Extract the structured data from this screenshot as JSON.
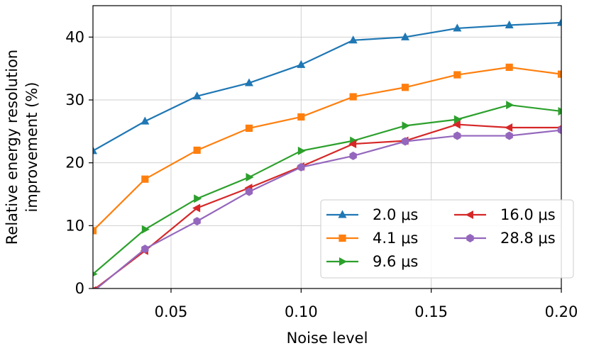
{
  "chart_data": {
    "type": "line",
    "x_label": "Noise level",
    "y_label": [
      "Relative energy resolution",
      "improvement (%)"
    ],
    "x": [
      0.02,
      0.04,
      0.06,
      0.08,
      0.1,
      0.12,
      0.14,
      0.16,
      0.18,
      0.2
    ],
    "xlim": [
      0.02,
      0.2
    ],
    "xticks": [
      0.05,
      {
        "value": 0.1,
        "label": "0.10"
      },
      0.15,
      {
        "value": 0.2,
        "label": "0.20"
      }
    ],
    "ylim": [
      0,
      45
    ],
    "yticks": [
      0,
      10,
      20,
      30,
      40
    ],
    "grid": true,
    "legend": "lower right",
    "series": [
      {
        "name": "2.0 μs",
        "color": "#1f77b4",
        "marker": "triangle-up",
        "values": [
          21.9,
          26.6,
          30.6,
          32.7,
          35.6,
          39.5,
          40.0,
          41.4,
          41.9,
          42.3
        ]
      },
      {
        "name": "4.1 μs",
        "color": "#ff7f0e",
        "marker": "square",
        "values": [
          9.2,
          17.4,
          22.0,
          25.5,
          27.3,
          30.5,
          32.0,
          34.0,
          35.2,
          34.1
        ]
      },
      {
        "name": "9.6 μs",
        "color": "#2ca02c",
        "marker": "triangle-right",
        "values": [
          2.3,
          9.4,
          14.3,
          17.7,
          21.9,
          23.5,
          25.9,
          26.9,
          29.2,
          28.2
        ]
      },
      {
        "name": "16.0 μs",
        "color": "#d62728",
        "marker": "triangle-left",
        "values": [
          -0.3,
          6.0,
          12.8,
          16.0,
          19.4,
          23.0,
          23.5,
          26.1,
          25.6,
          25.6
        ]
      },
      {
        "name": "28.8 μs",
        "color": "#9467bd",
        "marker": "hexagon",
        "values": [
          -0.5,
          6.3,
          10.7,
          15.4,
          19.3,
          21.1,
          23.4,
          24.3,
          24.3,
          25.2
        ]
      }
    ]
  }
}
